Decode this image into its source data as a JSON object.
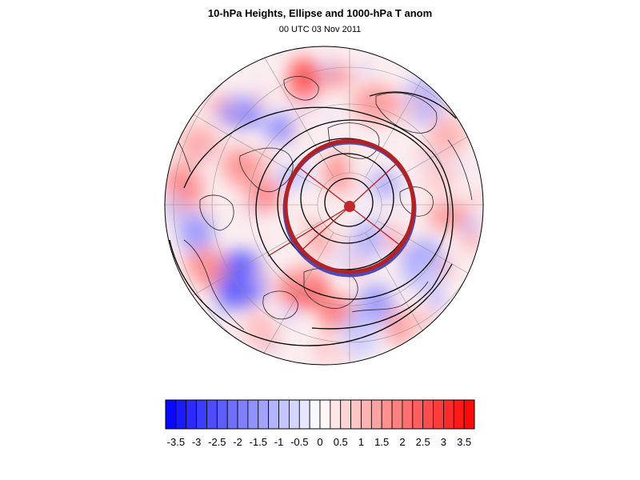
{
  "title": "10-hPa Heights, Ellipse and 1000-hPa T anom",
  "subtitle": "00 UTC 03 Nov 2011",
  "colorbar": {
    "min": -3.75,
    "max": 3.75,
    "step": 0.25,
    "low_color": "#0000ff",
    "mid_color": "#ffffff",
    "high_color": "#ff0000",
    "tick_labels": [
      "-3.5",
      "-3",
      "-2.5",
      "-2",
      "-1.5",
      "-1",
      "-0.5",
      "0",
      "0.5",
      "1",
      "1.5",
      "2",
      "2.5",
      "3",
      "3.5"
    ]
  },
  "map": {
    "projection": "polar stereographic (Northern Hemisphere)",
    "contour_color": "#000000",
    "ellipse_color": "#b22222",
    "graticule_color": "#888888"
  }
}
